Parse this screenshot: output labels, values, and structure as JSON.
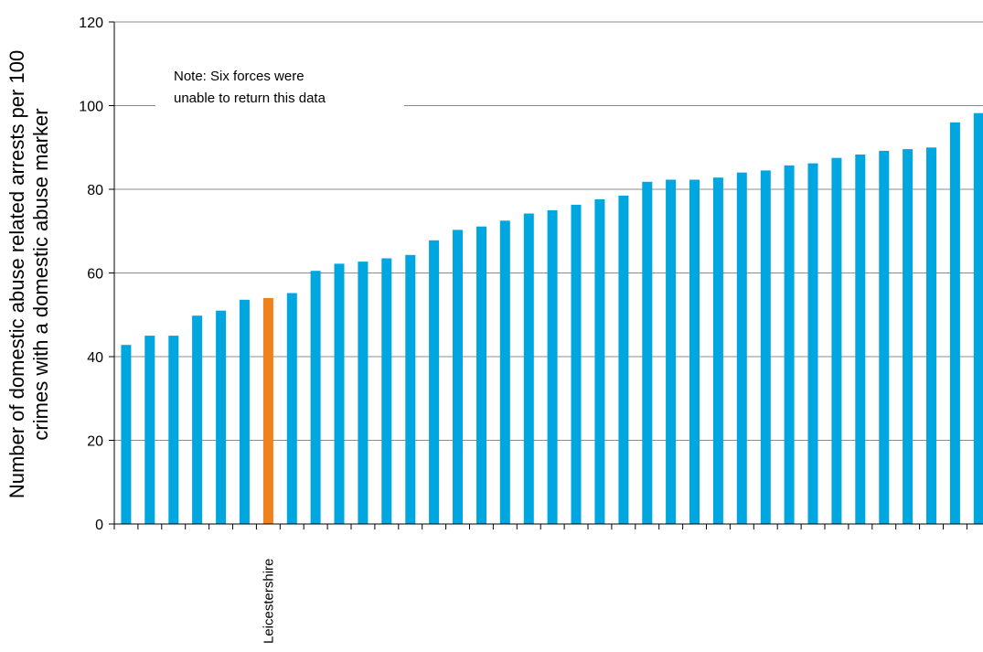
{
  "chart_data": {
    "type": "bar",
    "title": "",
    "xlabel": "",
    "ylabel_lines": [
      "Number of domestic abuse related arrests per 100",
      "crimes with a domestic abuse marker"
    ],
    "ylim": [
      0,
      120
    ],
    "yticks": [
      0,
      20,
      40,
      60,
      80,
      100,
      120
    ],
    "grid": true,
    "note_lines": [
      "Note: Six forces were",
      "unable to return this data"
    ],
    "highlight_label": "Leicestershire",
    "highlight_index": 6,
    "colors": {
      "bar": "#00A6E0",
      "highlight": "#F0821E",
      "grid": "#8C8C8C",
      "axis": "#000000"
    },
    "values": [
      42.8,
      45.0,
      45.0,
      49.8,
      51.0,
      53.6,
      54.0,
      55.2,
      60.5,
      62.2,
      62.7,
      63.5,
      64.3,
      67.8,
      70.3,
      71.1,
      72.5,
      74.2,
      75.0,
      76.3,
      77.6,
      78.5,
      81.8,
      82.3,
      82.3,
      82.8,
      84.0,
      84.5,
      85.7,
      86.2,
      87.5,
      88.3,
      89.2,
      89.6,
      90.0,
      96.0,
      98.2
    ]
  }
}
